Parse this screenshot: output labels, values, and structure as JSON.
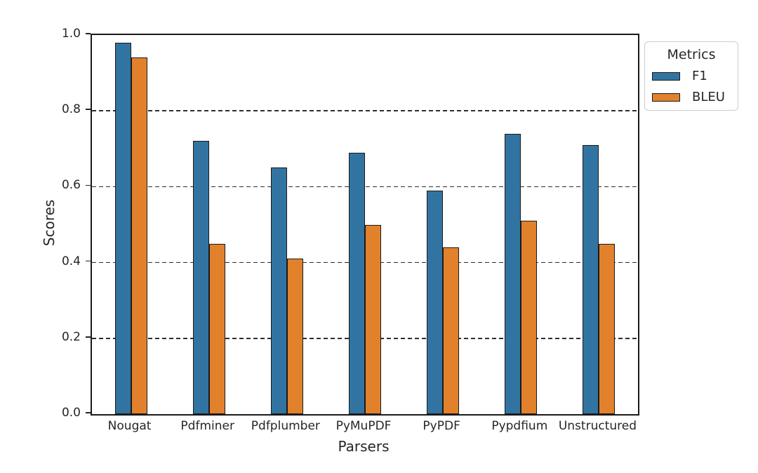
{
  "figure": {
    "background_color": "#ffffff",
    "text_color": "#262626",
    "spine_color": "#1a1a1a",
    "gridline_style": "dashed"
  },
  "chart_data": {
    "type": "bar",
    "title": "",
    "xlabel": "Parsers",
    "ylabel": "Scores",
    "categories": [
      "Nougat",
      "Pdfminer",
      "Pdfplumber",
      "PyMuPDF",
      "PyPDF",
      "Pypdfium",
      "Unstructured"
    ],
    "series": [
      {
        "name": "F1",
        "color": "#3274a1",
        "values": [
          0.98,
          0.72,
          0.65,
          0.69,
          0.59,
          0.74,
          0.71
        ]
      },
      {
        "name": "BLEU",
        "color": "#e1812c",
        "values": [
          0.94,
          0.45,
          0.41,
          0.5,
          0.44,
          0.51,
          0.45
        ]
      }
    ],
    "ylim": [
      0.0,
      1.0
    ],
    "yticks": [
      0.0,
      0.2,
      0.4,
      0.6,
      0.8,
      1.0
    ],
    "grid": "horizontal dashed lines at 0.2, 0.4, 0.6, 0.8",
    "legend_position": "upper right, outside plot"
  },
  "legend": {
    "title": "Metrics",
    "items": [
      {
        "label": "F1",
        "color": "#3274a1"
      },
      {
        "label": "BLEU",
        "color": "#e1812c"
      }
    ]
  }
}
